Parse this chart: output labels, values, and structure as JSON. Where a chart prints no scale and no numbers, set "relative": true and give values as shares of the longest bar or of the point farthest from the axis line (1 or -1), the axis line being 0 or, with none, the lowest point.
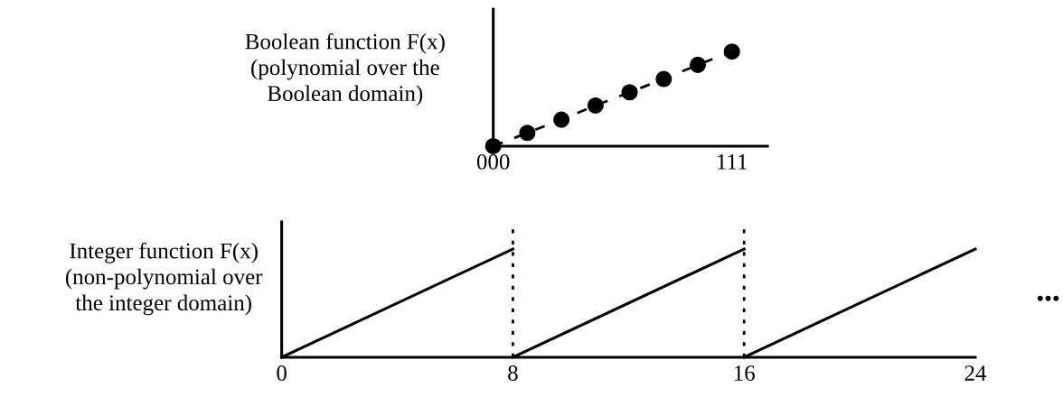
{
  "chart_data": [
    {
      "type": "line",
      "ylabel": "Boolean function F(x)\n(polynomial over the\nBoolean domain)",
      "relative": true,
      "categories": [
        "000",
        null,
        null,
        null,
        null,
        null,
        null,
        "111"
      ],
      "series": [
        {
          "color": "#000000",
          "values": [
            0,
            0.14,
            0.28,
            0.43,
            0.57,
            0.71,
            0.86,
            1
          ]
        }
      ],
      "marker": "circle",
      "line_style": "dashed",
      "grid": false,
      "legend": false
    },
    {
      "type": "line",
      "ylabel": "Integer function F(x)\n(non-polynomial over\nthe integer domain)",
      "relative": true,
      "xlim": [
        0,
        24
      ],
      "xticks": [
        0,
        8,
        16,
        24
      ],
      "series": [
        {
          "color": "#000000",
          "x": [
            0,
            8
          ],
          "values": [
            0,
            1
          ]
        },
        {
          "color": "#000000",
          "x": [
            8,
            16
          ],
          "values": [
            0,
            1
          ]
        },
        {
          "color": "#000000",
          "x": [
            16,
            24
          ],
          "values": [
            0,
            1
          ]
        }
      ],
      "ref_lines": [
        {
          "axis": "x",
          "value": 8,
          "color": "#000000",
          "line_style": "dotted"
        },
        {
          "axis": "x",
          "value": 16,
          "color": "#000000",
          "line_style": "dotted"
        }
      ],
      "annotations": [
        "•••"
      ],
      "marker": "none",
      "line_style": "solid",
      "grid": false,
      "legend": false
    }
  ]
}
